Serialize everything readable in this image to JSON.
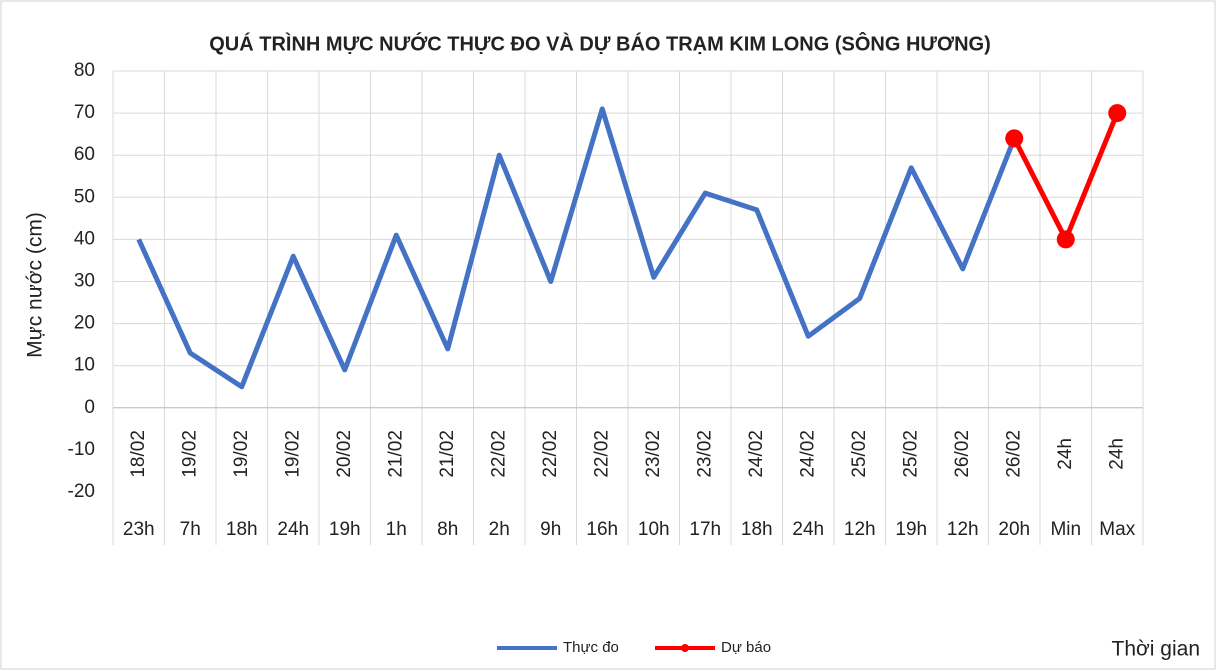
{
  "chart_data": {
    "type": "line",
    "title": "QUÁ TRÌNH MỰC NƯỚC THỰC ĐO VÀ DỰ BÁO TRẠM KIM LONG (SÔNG HƯƠNG)",
    "y_label": "Mực nước (cm)",
    "x_label": "Thời gian",
    "category_groups": [
      "18/02",
      "19/02",
      "19/02",
      "19/02",
      "20/02",
      "21/02",
      "21/02",
      "22/02",
      "22/02",
      "22/02",
      "23/02",
      "23/02",
      "24/02",
      "24/02",
      "25/02",
      "25/02",
      "26/02",
      "26/02",
      "24h",
      "24h"
    ],
    "categories": [
      "23h",
      "7h",
      "18h",
      "24h",
      "19h",
      "1h",
      "8h",
      "2h",
      "9h",
      "16h",
      "10h",
      "17h",
      "18h",
      "24h",
      "12h",
      "19h",
      "12h",
      "20h",
      "Min",
      "Max"
    ],
    "series": [
      {
        "name": "Thực đo",
        "color": "#4472c4",
        "marker": false,
        "values": [
          40,
          13,
          5,
          36,
          9,
          41,
          14,
          60,
          30,
          71,
          31,
          51,
          47,
          17,
          26,
          57,
          33,
          64,
          null,
          null
        ]
      },
      {
        "name": "Dự báo",
        "color": "#ff0000",
        "marker": true,
        "values": [
          null,
          null,
          null,
          null,
          null,
          null,
          null,
          null,
          null,
          null,
          null,
          null,
          null,
          null,
          null,
          null,
          null,
          64,
          40,
          70
        ]
      }
    ],
    "ylim": [
      -20,
      80
    ],
    "yticks": [
      -20,
      -10,
      0,
      10,
      20,
      30,
      40,
      50,
      60,
      70,
      80
    ],
    "grid": true,
    "legend": "bottom"
  }
}
